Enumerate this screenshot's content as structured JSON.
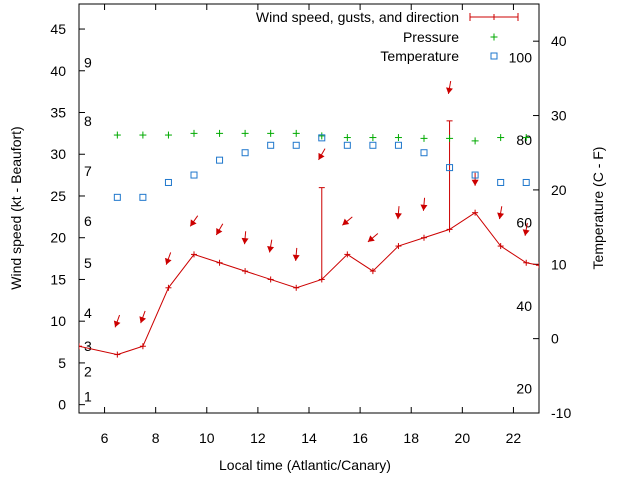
{
  "chart_data": {
    "type": "line",
    "title": "",
    "xlabel": "Local time (Atlantic/Canary)",
    "ylabel_left": "Wind speed (kt - Beaufort)",
    "ylabel_right": "Temperature (C - F)",
    "xlim": [
      5,
      23
    ],
    "ylim_left": [
      -1,
      48
    ],
    "ylim_right": [
      -10,
      45
    ],
    "x_ticks": [
      6,
      8,
      10,
      12,
      14,
      16,
      18,
      20,
      22
    ],
    "y_ticks_left": [
      0,
      5,
      10,
      15,
      20,
      25,
      30,
      35,
      40,
      45
    ],
    "beaufort_labels": [
      {
        "label": "1",
        "value": 1
      },
      {
        "label": "2",
        "value": 4
      },
      {
        "label": "3",
        "value": 7
      },
      {
        "label": "4",
        "value": 11
      },
      {
        "label": "5",
        "value": 17
      },
      {
        "label": "6",
        "value": 22
      },
      {
        "label": "7",
        "value": 28
      },
      {
        "label": "8",
        "value": 34
      },
      {
        "label": "9",
        "value": 41
      }
    ],
    "y_ticks_right_celsius": [
      -10,
      0,
      10,
      20,
      30,
      40
    ],
    "fahrenheit_labels": [
      {
        "label": "20",
        "value": -6.7
      },
      {
        "label": "40",
        "value": 4.4
      },
      {
        "label": "60",
        "value": 15.6
      },
      {
        "label": "80",
        "value": 26.7
      },
      {
        "label": "100",
        "value": 37.8
      }
    ],
    "legend": [
      {
        "label": "Wind speed, gusts, and direction",
        "color": "#cc0000",
        "marker": "line-plus"
      },
      {
        "label": "Pressure",
        "color": "#00aa00",
        "marker": "plus"
      },
      {
        "label": "Temperature",
        "color": "#1f77cc",
        "marker": "square"
      }
    ],
    "series": [
      {
        "name": "Wind speed",
        "color": "#cc0000",
        "x": [
          5,
          6.5,
          7.5,
          8.5,
          9.5,
          10.5,
          11.5,
          12.5,
          13.5,
          14.5,
          15.5,
          16.5,
          17.5,
          18.5,
          19.5,
          20.5,
          21.5,
          22.5,
          23
        ],
        "values": [
          7,
          6,
          7,
          14,
          18,
          17,
          16,
          15,
          14,
          15,
          18,
          16,
          19,
          20,
          21,
          23,
          19,
          17,
          16.7
        ]
      },
      {
        "name": "Gusts",
        "color": "#cc0000",
        "x": [
          14.5,
          19.5
        ],
        "values": [
          26,
          34
        ]
      },
      {
        "name": "Wind direction",
        "color": "#cc0000",
        "x": [
          6.5,
          7.5,
          8.5,
          9.5,
          10.5,
          11.5,
          12.5,
          13.5,
          14.5,
          15.5,
          16.5,
          17.5,
          18.5,
          19.5,
          20.5,
          21.5,
          22.5
        ],
        "y": [
          10,
          10.5,
          17.5,
          22,
          21,
          20,
          19,
          18,
          30,
          22,
          20,
          23,
          24,
          38,
          27,
          23,
          21
        ],
        "direction_deg": [
          20,
          20,
          20,
          35,
          30,
          5,
          10,
          5,
          30,
          50,
          50,
          5,
          5,
          10,
          0,
          10,
          10
        ]
      },
      {
        "name": "Pressure",
        "color": "#00aa00",
        "x": [
          6.5,
          7.5,
          8.5,
          9.5,
          10.5,
          11.5,
          12.5,
          13.5,
          14.5,
          15.5,
          16.5,
          17.5,
          18.5,
          19.5,
          20.5,
          21.5,
          22.5
        ],
        "values": [
          32.3,
          32.3,
          32.3,
          32.5,
          32.5,
          32.5,
          32.5,
          32.5,
          32.2,
          32,
          32,
          32,
          31.9,
          31.9,
          31.6,
          32,
          32
        ]
      },
      {
        "name": "Temperature",
        "color": "#1f77cc",
        "x": [
          6.5,
          7.5,
          8.5,
          9.5,
          10.5,
          11.5,
          12.5,
          13.5,
          14.5,
          15.5,
          16.5,
          17.5,
          18.5,
          19.5,
          20.5,
          21.5,
          22.5
        ],
        "values": [
          19,
          19,
          21,
          22,
          24,
          25,
          26,
          26,
          27,
          26,
          26,
          26,
          25,
          23,
          22,
          21,
          21
        ]
      }
    ]
  }
}
